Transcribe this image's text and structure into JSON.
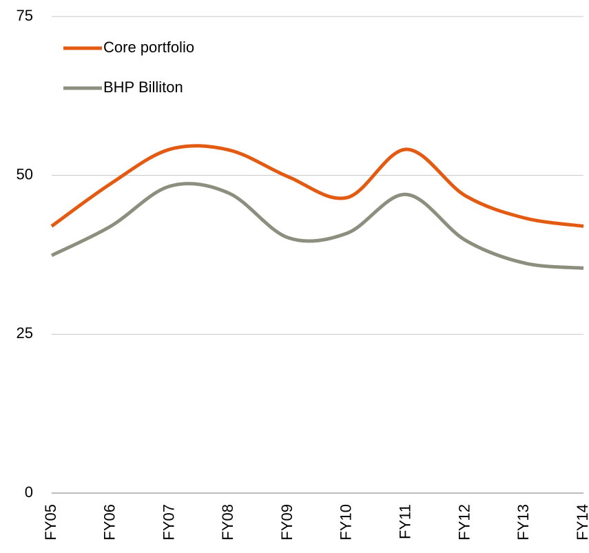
{
  "chart_data": {
    "type": "line",
    "categories": [
      "FY05",
      "FY06",
      "FY07",
      "FY08",
      "FY09",
      "FY10",
      "FY11",
      "FY12",
      "FY13",
      "FY14"
    ],
    "series": [
      {
        "name": "Core portfolio",
        "color": "#e35b12",
        "values": [
          42,
          48.7,
          54.1,
          54,
          49.8,
          46.5,
          54.1,
          46.8,
          43.3,
          42
        ]
      },
      {
        "name": "BHP Billiton",
        "color": "#8c8f7e",
        "values": [
          37.4,
          42,
          48.3,
          47.2,
          40.2,
          40.9,
          47,
          39.8,
          36.2,
          35.4
        ]
      }
    ],
    "ylim": [
      0,
      75
    ],
    "yticks": [
      0,
      25,
      50,
      75
    ],
    "grid": true,
    "smooth": true,
    "legend": "top-left"
  }
}
